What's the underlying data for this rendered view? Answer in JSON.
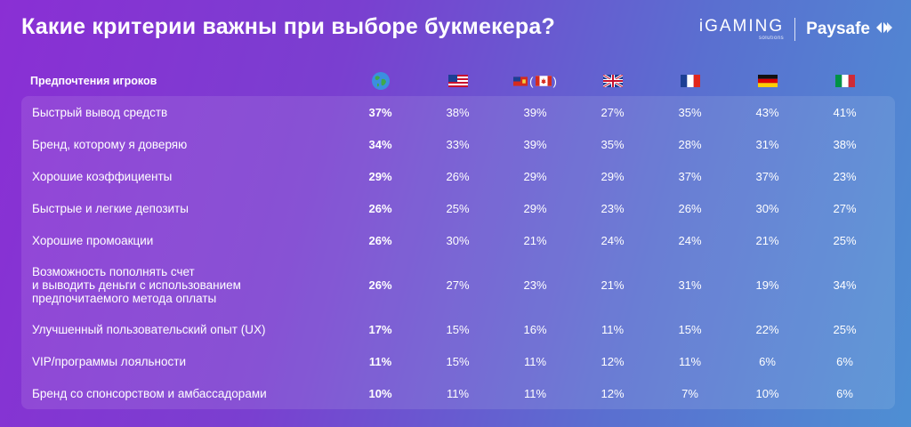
{
  "title": "Какие критерии важны при выборе букмекера?",
  "logos": {
    "igaming": "iGAMING",
    "igaming_sub": "solutions",
    "paysafe": "Paysafe"
  },
  "chart_data": {
    "type": "table",
    "title": "Какие критерии важны при выборе букмекера?",
    "header_label": "Предпочтения игроков",
    "columns": [
      {
        "icon": "globe-icon"
      },
      {
        "icon": "flag-usa-icon"
      },
      {
        "icon": "flag-ontario-canada-icon",
        "text_open": "(",
        "text_close": ")"
      },
      {
        "icon": "flag-uk-icon"
      },
      {
        "icon": "flag-france-icon"
      },
      {
        "icon": "flag-germany-icon"
      },
      {
        "icon": "flag-italy-icon"
      }
    ],
    "rows": [
      {
        "label": "Быстрый вывод средств",
        "values": [
          "37%",
          "38%",
          "39%",
          "27%",
          "35%",
          "43%",
          "41%"
        ]
      },
      {
        "label": "Бренд, которому я доверяю",
        "values": [
          "34%",
          "33%",
          "39%",
          "35%",
          "28%",
          "31%",
          "38%"
        ]
      },
      {
        "label": "Хорошие коэффициенты",
        "values": [
          "29%",
          "26%",
          "29%",
          "29%",
          "37%",
          "37%",
          "23%"
        ]
      },
      {
        "label": "Быстрые и легкие депозиты",
        "values": [
          "26%",
          "25%",
          "29%",
          "23%",
          "26%",
          "30%",
          "27%"
        ]
      },
      {
        "label": "Хорошие промоакции",
        "values": [
          "26%",
          "30%",
          "21%",
          "24%",
          "24%",
          "21%",
          "25%"
        ]
      },
      {
        "label": "Возможность пополнять счет и выводить деньги с использованием предпочитаемого метода оплаты",
        "label_lines": [
          "Возможность пополнять счет",
          "и выводить деньги с использованием",
          "предпочитаемого метода оплаты"
        ],
        "values": [
          "26%",
          "27%",
          "23%",
          "21%",
          "31%",
          "19%",
          "34%"
        ]
      },
      {
        "label": "Улучшенный пользовательский опыт (UX)",
        "values": [
          "17%",
          "15%",
          "16%",
          "11%",
          "15%",
          "22%",
          "25%"
        ]
      },
      {
        "label": "VIP/программы лояльности",
        "values": [
          "11%",
          "15%",
          "11%",
          "12%",
          "11%",
          "6%",
          "6%"
        ]
      },
      {
        "label": "Бренд со спонсорством и амбассадорами",
        "values": [
          "10%",
          "11%",
          "11%",
          "12%",
          "7%",
          "10%",
          "6%"
        ]
      }
    ]
  }
}
